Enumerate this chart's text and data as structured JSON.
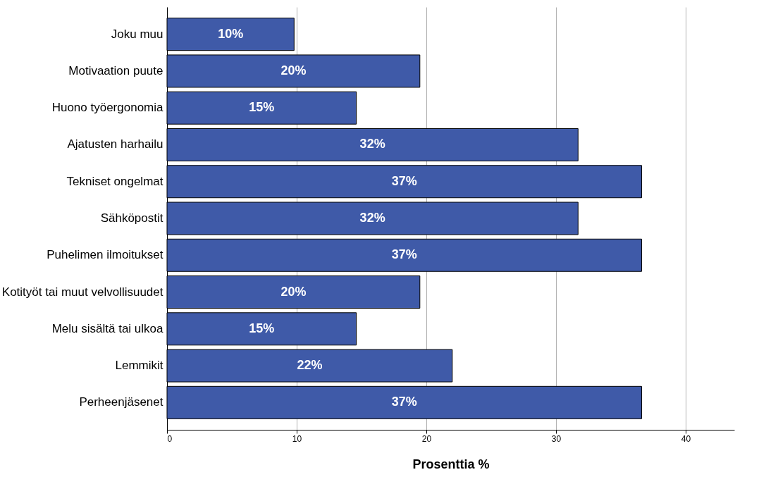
{
  "chart_data": {
    "type": "bar",
    "orientation": "horizontal",
    "xlabel": "Prosenttia %",
    "categories": [
      "Joku muu",
      "Motivaation puute",
      "Huono työergonomia",
      "Ajatusten harhailu",
      "Tekniset ongelmat",
      "Sähköpostit",
      "Puhelimen ilmoitukset",
      "Kotityöt tai muut velvollisuudet",
      "Melu sisältä tai ulkoa",
      "Lemmikit",
      "Perheenjäsenet"
    ],
    "values": [
      9.8,
      19.5,
      14.6,
      31.7,
      36.6,
      31.7,
      36.6,
      19.5,
      14.6,
      22.0,
      36.6
    ],
    "value_labels": [
      "10%",
      "20%",
      "15%",
      "32%",
      "37%",
      "32%",
      "37%",
      "20%",
      "15%",
      "22%",
      "37%"
    ],
    "color": "#3f5aa8",
    "xlim": [
      0,
      43.75
    ],
    "xticks": [
      0,
      10,
      20,
      30,
      40
    ],
    "grid": "x"
  }
}
